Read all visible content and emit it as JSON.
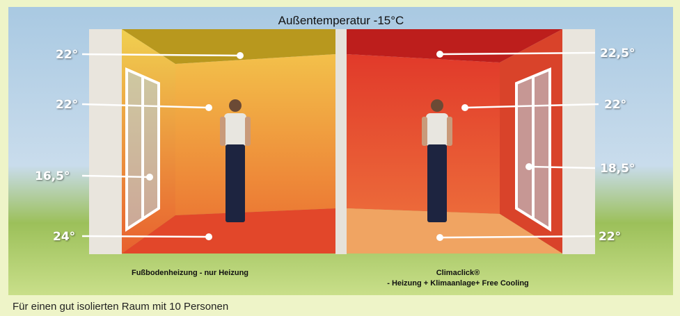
{
  "title": "Außentemperatur -15°C",
  "left_room": {
    "caption": "Fußbodenheizung - nur Heizung",
    "labels": [
      "22°",
      "22°",
      "16,5°",
      "24°"
    ]
  },
  "right_room": {
    "caption": [
      "Climaclick®",
      "- Heizung + Klimaanlage+ Free Cooling"
    ],
    "labels": [
      "22,5°",
      "22°",
      "18,5°",
      "22°"
    ]
  },
  "footnote": "Für einen gut isolierten Raum mit 10 Personen"
}
